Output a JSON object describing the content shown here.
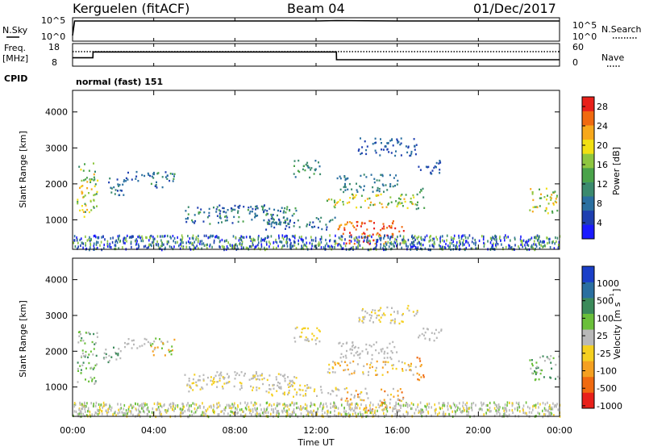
{
  "header": {
    "radar": "Kerguelen (fitACF)",
    "beam": "Beam 04",
    "date": "01/Dec/2017"
  },
  "nsky_panel": {
    "left_label": "N.Sky",
    "right_label": "N.Search",
    "left_ticks": [
      "10^5",
      "10^0"
    ],
    "right_ticks": [
      "10^5",
      "10^0"
    ]
  },
  "freq_panel": {
    "left_label_1": "Freq.",
    "left_label_2": "[MHz]",
    "cpid_label": "CPID",
    "right_label": "Nave",
    "left_ticks": [
      "18",
      "8"
    ],
    "right_ticks": [
      "60",
      "0"
    ]
  },
  "cpid_text": "normal (fast) 151",
  "x_axis": {
    "label": "Time UT",
    "ticks": [
      "00:00",
      "04:00",
      "08:00",
      "12:00",
      "16:00",
      "20:00",
      "00:00"
    ],
    "range_hours": [
      0,
      24
    ]
  },
  "colors": {
    "power_scale": [
      "#1a1aff",
      "#1e3fb0",
      "#2a6fa0",
      "#3b8a6e",
      "#4aa34a",
      "#8ec63f",
      "#f2e012",
      "#f7a81b",
      "#f06a10",
      "#e8201a"
    ],
    "velocity_scale": [
      "#1a3fc8",
      "#2a6fa0",
      "#3b8a5a",
      "#6abf3a",
      "#b8b8b8",
      "#f5d020",
      "#f5a020",
      "#f06a10",
      "#e8201a"
    ]
  },
  "chart_data": [
    {
      "type": "line",
      "title": "N.Sky / N.Search",
      "x": [
        0,
        0.1,
        1,
        4,
        8,
        12,
        13,
        16,
        20,
        24
      ],
      "series": [
        {
          "name": "N.Sky",
          "values": [
            1.0,
            4.6,
            4.6,
            4.6,
            4.6,
            4.6,
            4.7,
            4.6,
            4.6,
            4.6
          ]
        }
      ],
      "ylim": [
        0,
        5
      ]
    },
    {
      "type": "line",
      "x": [
        0,
        1.0,
        1.01,
        13.0,
        13.01,
        24
      ],
      "series": [
        {
          "name": "Freq.",
          "values": [
            11.5,
            11.5,
            14.5,
            14.5,
            10.5,
            10.5
          ]
        },
        {
          "name": "Nave",
          "values": [
            40,
            40,
            40,
            40,
            40,
            40
          ]
        }
      ],
      "ylim": [
        8,
        18
      ]
    },
    {
      "type": "heatmap",
      "title": "Power [dB]",
      "xlabel": "",
      "ylabel": "Slant Range [km]",
      "yticks": [
        "1000",
        "2000",
        "3000",
        "4000"
      ],
      "ylim": [
        180,
        4600
      ],
      "colorbar_label": "Power [dB]",
      "colorbar_ticks": [
        "4",
        "8",
        "12",
        "16",
        "20",
        "24",
        "28"
      ]
    },
    {
      "type": "heatmap",
      "title": "Velocity [m s^-1]",
      "xlabel": "Time UT",
      "ylabel": "Slant Range [km]",
      "yticks": [
        "1000",
        "2000",
        "3000",
        "4000"
      ],
      "ylim": [
        180,
        4600
      ],
      "colorbar_label": "Velocity [m s",
      "colorbar_ticks": [
        "1000",
        "500",
        "100",
        "25",
        "-25",
        "-100",
        "-500",
        "-1000"
      ]
    }
  ]
}
